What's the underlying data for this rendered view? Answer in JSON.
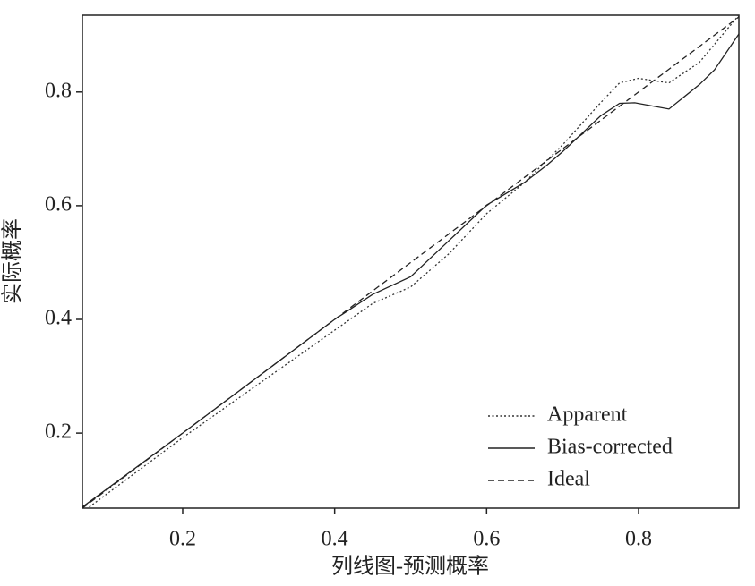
{
  "chart_data": {
    "type": "line",
    "x_label": "列线图-预测概率",
    "y_label": "实际概率",
    "xlim": [
      0.068,
      0.932
    ],
    "ylim": [
      0.068,
      0.935
    ],
    "xticks": [
      0.2,
      0.4,
      0.6,
      0.8
    ],
    "yticks": [
      0.2,
      0.4,
      0.6,
      0.8
    ],
    "legend": "lower right",
    "series": [
      {
        "name": "Apparent",
        "color": "#333333",
        "line_style": "dotted",
        "x": [
          0.077,
          0.2,
          0.4,
          0.45,
          0.5,
          0.55,
          0.6,
          0.65,
          0.7,
          0.75,
          0.775,
          0.8,
          0.84,
          0.88,
          0.932
        ],
        "values": [
          0.07,
          0.192,
          0.381,
          0.428,
          0.457,
          0.515,
          0.586,
          0.641,
          0.707,
          0.781,
          0.816,
          0.824,
          0.816,
          0.852,
          0.935
        ]
      },
      {
        "name": "Bias-corrected",
        "color": "#222222",
        "line_style": "solid",
        "x": [
          0.068,
          0.2,
          0.4,
          0.45,
          0.5,
          0.55,
          0.6,
          0.65,
          0.68,
          0.7,
          0.75,
          0.775,
          0.795,
          0.84,
          0.88,
          0.9,
          0.932
        ],
        "values": [
          0.07,
          0.2,
          0.4,
          0.444,
          0.475,
          0.538,
          0.601,
          0.641,
          0.672,
          0.695,
          0.758,
          0.78,
          0.781,
          0.77,
          0.813,
          0.839,
          0.902
        ]
      },
      {
        "name": "Ideal",
        "color": "#222222",
        "line_style": "dashed",
        "x": [
          0.068,
          0.932
        ],
        "values": [
          0.068,
          0.932
        ]
      }
    ]
  }
}
